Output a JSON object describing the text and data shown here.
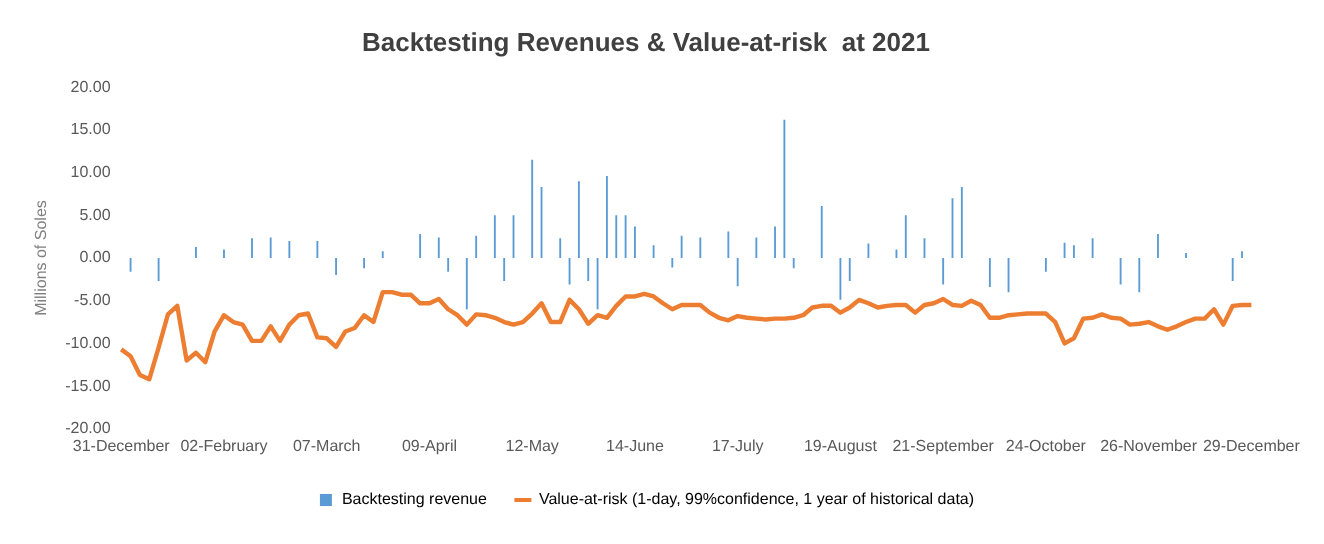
{
  "chart_data": {
    "type": "bar",
    "title": "Backtesting Revenues & Value-at-risk  at 2021",
    "ylabel": "Millions of Soles",
    "categories": [
      "31-December",
      null,
      null,
      null,
      null,
      null,
      null,
      null,
      null,
      null,
      null,
      "02-February",
      null,
      null,
      null,
      null,
      null,
      null,
      null,
      null,
      null,
      null,
      "07-March",
      null,
      null,
      null,
      null,
      null,
      null,
      null,
      null,
      null,
      null,
      "09-April",
      null,
      null,
      null,
      null,
      null,
      null,
      null,
      null,
      null,
      null,
      "12-May",
      null,
      null,
      null,
      null,
      null,
      null,
      null,
      null,
      null,
      null,
      "14-June",
      null,
      null,
      null,
      null,
      null,
      null,
      null,
      null,
      null,
      null,
      "17-July",
      null,
      null,
      null,
      null,
      null,
      null,
      null,
      null,
      null,
      null,
      "19-August",
      null,
      null,
      null,
      null,
      null,
      null,
      null,
      null,
      null,
      null,
      "21-September",
      null,
      null,
      null,
      null,
      null,
      null,
      null,
      null,
      null,
      null,
      "24-October",
      null,
      null,
      null,
      null,
      null,
      null,
      null,
      null,
      null,
      null,
      "26-November",
      null,
      null,
      null,
      null,
      null,
      null,
      null,
      null,
      null,
      null,
      "29-December"
    ],
    "series": [
      {
        "name": "Backtesting revenue",
        "color": "#5b9bd5",
        "values": [
          0,
          -1.6,
          0,
          0,
          -2.7,
          0,
          0,
          0,
          1.3,
          0,
          0,
          1.0,
          0,
          0,
          2.3,
          0,
          2.4,
          0,
          2.0,
          0,
          0,
          2.0,
          0,
          -2.0,
          0,
          0,
          -1.2,
          0,
          0.8,
          0,
          0,
          0,
          2.8,
          0,
          2.4,
          -1.6,
          0,
          -6.0,
          2.6,
          0,
          5.0,
          -2.7,
          5.0,
          0,
          11.5,
          8.3,
          0,
          2.3,
          -3.1,
          9.0,
          -2.7,
          -6.0,
          9.6,
          5.0,
          5.0,
          3.7,
          0,
          1.5,
          0,
          -1.1,
          2.6,
          0,
          2.4,
          0,
          0,
          3.1,
          -3.3,
          0,
          2.4,
          0,
          3.7,
          16.2,
          -1.2,
          0,
          0,
          6.1,
          0,
          -4.9,
          -2.7,
          0,
          1.7,
          0,
          0,
          1.0,
          5.0,
          0,
          2.3,
          0,
          -3.1,
          7.0,
          8.3,
          0,
          0,
          -3.4,
          0,
          -4.0,
          0,
          0,
          0,
          -1.6,
          0,
          1.8,
          1.5,
          0,
          2.3,
          0,
          0,
          -3.1,
          0,
          -4.0,
          0,
          2.8,
          0,
          0,
          0.6,
          0,
          0,
          0,
          0,
          -2.7,
          0.8,
          0
        ]
      },
      {
        "name": "Value-at-risk (1-day, 99%confidence, 1 year of historical data)",
        "type": "line",
        "color": "#ed7d31",
        "values": [
          -10.7,
          -11.5,
          -13.7,
          -14.2,
          -10.5,
          -6.6,
          -5.6,
          -12.0,
          -11.1,
          -12.2,
          -8.6,
          -6.7,
          -7.5,
          -7.8,
          -9.7,
          -9.7,
          -8.0,
          -9.7,
          -7.8,
          -6.7,
          -6.5,
          -9.3,
          -9.4,
          -10.4,
          -8.6,
          -8.2,
          -6.7,
          -7.5,
          -4.0,
          -4.0,
          -4.3,
          -4.3,
          -5.3,
          -5.3,
          -4.8,
          -6.0,
          -6.7,
          -7.8,
          -6.6,
          -6.7,
          -7.0,
          -7.5,
          -7.8,
          -7.5,
          -6.5,
          -5.3,
          -7.5,
          -7.5,
          -4.9,
          -6.0,
          -7.7,
          -6.7,
          -7.0,
          -5.6,
          -4.5,
          -4.5,
          -4.2,
          -4.5,
          -5.3,
          -6.0,
          -5.5,
          -5.5,
          -5.5,
          -6.4,
          -7.0,
          -7.3,
          -6.8,
          -7.0,
          -7.1,
          -7.2,
          -7.1,
          -7.1,
          -7.0,
          -6.7,
          -5.8,
          -5.6,
          -5.6,
          -6.4,
          -5.8,
          -4.9,
          -5.3,
          -5.8,
          -5.6,
          -5.5,
          -5.5,
          -6.4,
          -5.5,
          -5.3,
          -4.8,
          -5.5,
          -5.6,
          -5.0,
          -5.5,
          -7.0,
          -7.0,
          -6.7,
          -6.6,
          -6.5,
          -6.5,
          -6.5,
          -7.5,
          -10.0,
          -9.4,
          -7.1,
          -7.0,
          -6.6,
          -7.0,
          -7.1,
          -7.8,
          -7.7,
          -7.5,
          -8.0,
          -8.4,
          -8.0,
          -7.5,
          -7.1,
          -7.1,
          -6.0,
          -7.8,
          -5.6,
          -5.5,
          -5.5
        ]
      }
    ],
    "ylim": [
      -20,
      20
    ],
    "yticks": [
      {
        "value": -20,
        "label": "-20.00"
      },
      {
        "value": -15,
        "label": "-15.00"
      },
      {
        "value": -10,
        "label": "-10.00"
      },
      {
        "value": -5,
        "label": "-5.00"
      },
      {
        "value": 0,
        "label": "0.00"
      },
      {
        "value": 5,
        "label": "5.00"
      },
      {
        "value": 10,
        "label": "10.00"
      },
      {
        "value": 15,
        "label": "15.00"
      },
      {
        "value": 20,
        "label": "20.00"
      }
    ],
    "grid": false,
    "legend": "bottom",
    "marker": "none",
    "line_style": "solid"
  }
}
